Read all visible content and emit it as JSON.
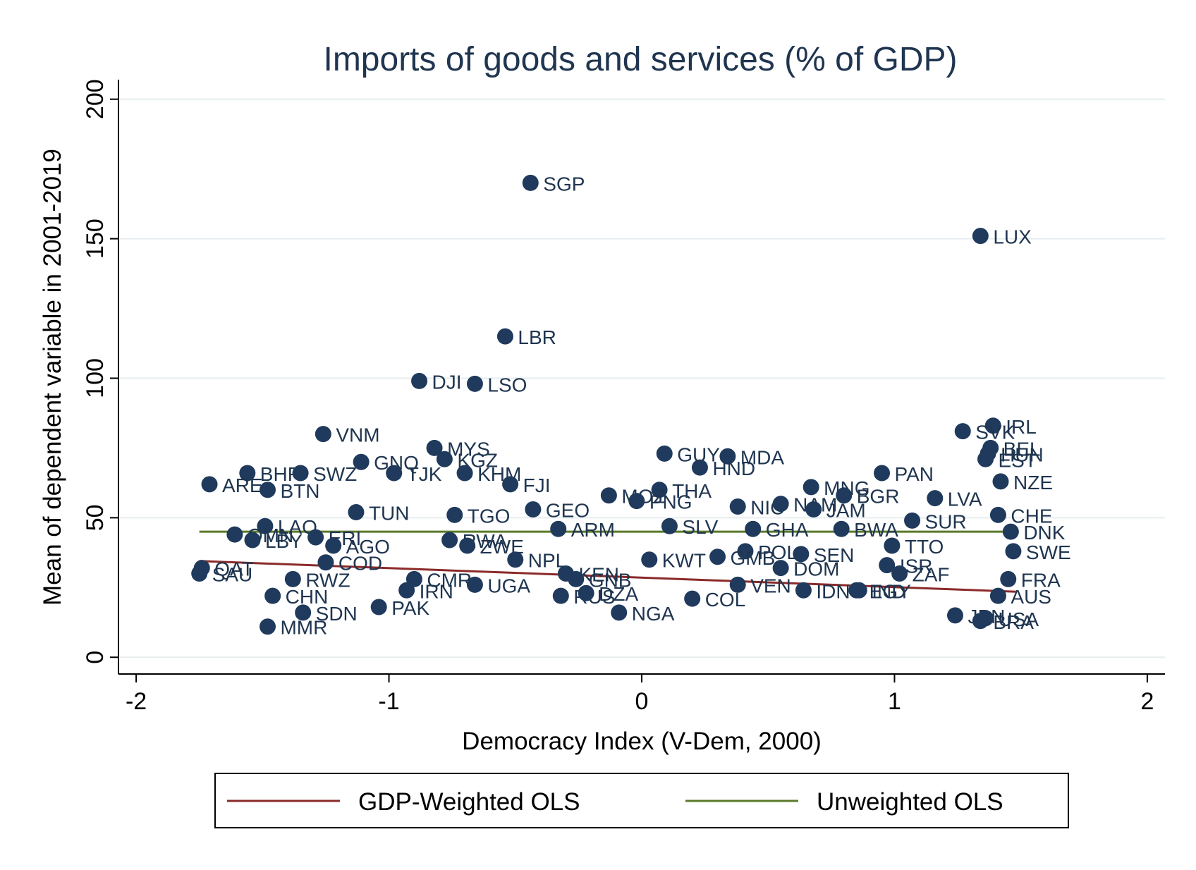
{
  "chart_data": {
    "type": "scatter",
    "title": "Imports of goods and services (% of GDP)",
    "xlabel": "Democracy Index (V-Dem, 2000)",
    "ylabel": "Mean of dependent variable in 2001-2019",
    "xlim": [
      -2.07,
      2.07
    ],
    "ylim": [
      -6,
      207
    ],
    "x_ticks": [
      -2,
      -1,
      0,
      1,
      2
    ],
    "y_ticks": [
      0,
      50,
      100,
      150,
      200
    ],
    "x_tick_labels": [
      "-2",
      "-1",
      "0",
      "1",
      "2"
    ],
    "y_tick_labels": [
      "0",
      "50",
      "100",
      "150",
      "200"
    ],
    "grid": "horizontal",
    "legend_position": "bottom",
    "colors": {
      "points": "#1f3a5c",
      "weighted_line": "#8b2a2a",
      "unweighted_line": "#5a7a2a",
      "gridline": "#e6eef0",
      "title": "#1f3550"
    },
    "points": [
      {
        "label": "SGP",
        "x": -0.44,
        "y": 170
      },
      {
        "label": "LUX",
        "x": 1.34,
        "y": 151
      },
      {
        "label": "LBR",
        "x": -0.54,
        "y": 115
      },
      {
        "label": "DJI",
        "x": -0.88,
        "y": 99
      },
      {
        "label": "LSO",
        "x": -0.66,
        "y": 98
      },
      {
        "label": "IRL",
        "x": 1.39,
        "y": 83
      },
      {
        "label": "VNM",
        "x": -1.26,
        "y": 80
      },
      {
        "label": "SVK",
        "x": 1.27,
        "y": 81
      },
      {
        "label": "MYS",
        "x": -0.82,
        "y": 75
      },
      {
        "label": "GUY",
        "x": 0.09,
        "y": 73
      },
      {
        "label": "MDA",
        "x": 0.34,
        "y": 72
      },
      {
        "label": "BEL",
        "x": 1.38,
        "y": 75
      },
      {
        "label": "HUN",
        "x": 1.37,
        "y": 73
      },
      {
        "label": "EST",
        "x": 1.36,
        "y": 71
      },
      {
        "label": "KGZ",
        "x": -0.78,
        "y": 71
      },
      {
        "label": "GNQ",
        "x": -1.11,
        "y": 70
      },
      {
        "label": "HND",
        "x": 0.23,
        "y": 68
      },
      {
        "label": "BHR",
        "x": -1.56,
        "y": 66
      },
      {
        "label": "SWZ",
        "x": -1.35,
        "y": 66
      },
      {
        "label": "TJK",
        "x": -0.98,
        "y": 66
      },
      {
        "label": "KHM",
        "x": -0.7,
        "y": 66
      },
      {
        "label": "PAN",
        "x": 0.95,
        "y": 66
      },
      {
        "label": "THA",
        "x": 0.07,
        "y": 60
      },
      {
        "label": "ARE",
        "x": -1.71,
        "y": 62
      },
      {
        "label": "BTN",
        "x": -1.48,
        "y": 60
      },
      {
        "label": "FJI",
        "x": -0.52,
        "y": 62
      },
      {
        "label": "NZE",
        "x": 1.42,
        "y": 63
      },
      {
        "label": "MNG",
        "x": 0.67,
        "y": 61
      },
      {
        "label": "BGR",
        "x": 0.8,
        "y": 58
      },
      {
        "label": "LVA",
        "x": 1.16,
        "y": 57
      },
      {
        "label": "MOZ",
        "x": -0.13,
        "y": 58
      },
      {
        "label": "PNG",
        "x": -0.02,
        "y": 56
      },
      {
        "label": "NIC",
        "x": 0.38,
        "y": 54
      },
      {
        "label": "NAM",
        "x": 0.55,
        "y": 55
      },
      {
        "label": "JAM",
        "x": 0.68,
        "y": 53
      },
      {
        "label": "TUN",
        "x": -1.13,
        "y": 52
      },
      {
        "label": "TGO",
        "x": -0.74,
        "y": 51
      },
      {
        "label": "GEO",
        "x": -0.43,
        "y": 53
      },
      {
        "label": "CHE",
        "x": 1.41,
        "y": 51
      },
      {
        "label": "SUR",
        "x": 1.07,
        "y": 49
      },
      {
        "label": "SLV",
        "x": 0.11,
        "y": 47
      },
      {
        "label": "GHA",
        "x": 0.44,
        "y": 46
      },
      {
        "label": "BWA",
        "x": 0.79,
        "y": 46
      },
      {
        "label": "ARM",
        "x": -0.33,
        "y": 46
      },
      {
        "label": "DNK",
        "x": 1.46,
        "y": 45
      },
      {
        "label": "LAO",
        "x": -1.49,
        "y": 47
      },
      {
        "label": "OMN",
        "x": -1.61,
        "y": 44
      },
      {
        "label": "LBY",
        "x": -1.54,
        "y": 42
      },
      {
        "label": "ERI",
        "x": -1.29,
        "y": 43
      },
      {
        "label": "AGO",
        "x": -1.22,
        "y": 40
      },
      {
        "label": "RWA",
        "x": -0.76,
        "y": 42
      },
      {
        "label": "ZWE",
        "x": -0.69,
        "y": 40
      },
      {
        "label": "TTO",
        "x": 0.99,
        "y": 40
      },
      {
        "label": "POL",
        "x": 0.41,
        "y": 38
      },
      {
        "label": "SEN",
        "x": 0.63,
        "y": 37
      },
      {
        "label": "SWE",
        "x": 1.47,
        "y": 38
      },
      {
        "label": "COD",
        "x": -1.25,
        "y": 34
      },
      {
        "label": "NPL",
        "x": -0.5,
        "y": 35
      },
      {
        "label": "KWT",
        "x": 0.03,
        "y": 35
      },
      {
        "label": "GMB",
        "x": 0.3,
        "y": 36
      },
      {
        "label": "DOM",
        "x": 0.55,
        "y": 32
      },
      {
        "label": "ISR",
        "x": 0.97,
        "y": 33
      },
      {
        "label": "QAT",
        "x": -1.74,
        "y": 32
      },
      {
        "label": "SAU",
        "x": -1.75,
        "y": 30
      },
      {
        "label": "RWZ",
        "x": -1.38,
        "y": 28
      },
      {
        "label": "CMR",
        "x": -0.9,
        "y": 28
      },
      {
        "label": "KEN",
        "x": -0.3,
        "y": 30
      },
      {
        "label": "GNB",
        "x": -0.26,
        "y": 28
      },
      {
        "label": "ZAF",
        "x": 1.02,
        "y": 30
      },
      {
        "label": "FRA",
        "x": 1.45,
        "y": 28
      },
      {
        "label": "UGA",
        "x": -0.66,
        "y": 26
      },
      {
        "label": "IRN",
        "x": -0.93,
        "y": 24
      },
      {
        "label": "VEN",
        "x": 0.38,
        "y": 26
      },
      {
        "label": "IDN",
        "x": 0.64,
        "y": 24
      },
      {
        "label": "EGY",
        "x": 0.85,
        "y": 24
      },
      {
        "label": "IND",
        "x": 0.86,
        "y": 24
      },
      {
        "label": "RUS",
        "x": -0.32,
        "y": 22
      },
      {
        "label": "DZA",
        "x": -0.22,
        "y": 23
      },
      {
        "label": "CHN",
        "x": -1.46,
        "y": 22
      },
      {
        "label": "COL",
        "x": 0.2,
        "y": 21
      },
      {
        "label": "AUS",
        "x": 1.41,
        "y": 22
      },
      {
        "label": "PAK",
        "x": -1.04,
        "y": 18
      },
      {
        "label": "SDN",
        "x": -1.34,
        "y": 16
      },
      {
        "label": "NGA",
        "x": -0.09,
        "y": 16
      },
      {
        "label": "JPN",
        "x": 1.24,
        "y": 15
      },
      {
        "label": "USA",
        "x": 1.36,
        "y": 14
      },
      {
        "label": "BRA",
        "x": 1.34,
        "y": 13
      },
      {
        "label": "MMR",
        "x": -1.48,
        "y": 11
      }
    ],
    "series": [
      {
        "name": "GDP-Weighted OLS",
        "x": [
          -1.75,
          1.48
        ],
        "y": [
          34.5,
          23.5
        ]
      },
      {
        "name": "Unweighted OLS",
        "x": [
          -1.75,
          1.48
        ],
        "y": [
          45.0,
          45.0
        ]
      }
    ]
  }
}
